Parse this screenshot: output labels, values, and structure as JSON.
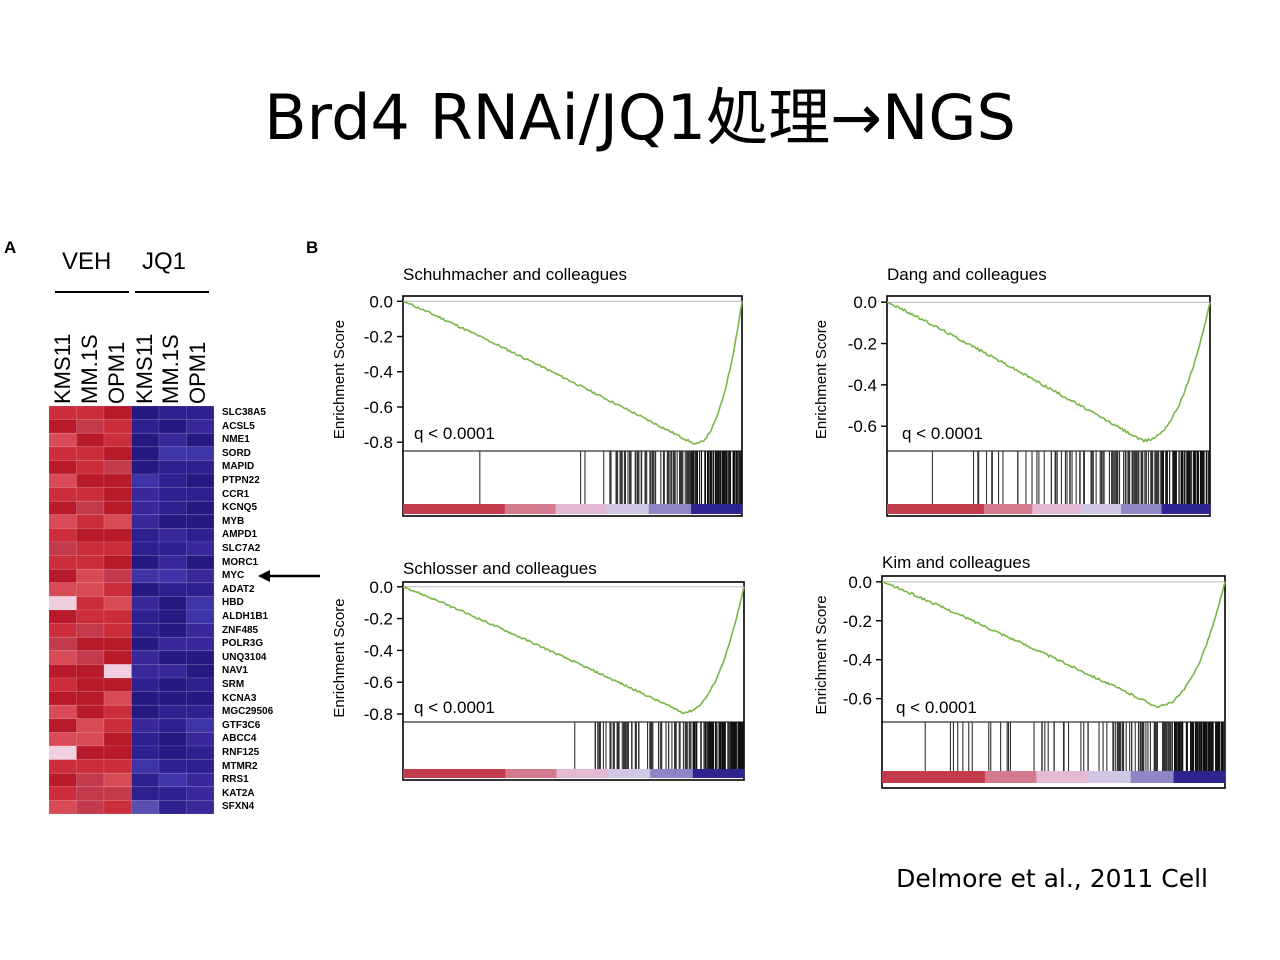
{
  "slide": {
    "title": "Brd4 RNAi/JQ1処理→NGS",
    "citation": "Delmore et al., 2011 Cell"
  },
  "panel_a": {
    "letter": "A",
    "groups": [
      "VEH",
      "JQ1"
    ],
    "columns": [
      "KMS11",
      "MM.1S",
      "OPM1",
      "KMS11",
      "MM.1S",
      "OPM1"
    ],
    "genes": [
      "SLC38A5",
      "ACSL5",
      "NME1",
      "SORD",
      "MAPID",
      "PTPN22",
      "CCR1",
      "KCNQ5",
      "MYB",
      "AMPD1",
      "SLC7A2",
      "MORC1",
      "MYC",
      "ADAT2",
      "HBD",
      "ALDH1B1",
      "ZNF485",
      "POLR3G",
      "UNQ3104",
      "NAV1",
      "SRM",
      "KCNA3",
      "MGC29506",
      "GTF3C6",
      "ABCC4",
      "RNF125",
      "MTMR2",
      "RRS1",
      "KAT2A",
      "SFXN4"
    ],
    "highlight_gene": "MYC",
    "colors": {
      "high": "#c8202e",
      "low": "#2c1d8c",
      "mid": "#f0d0e0"
    }
  },
  "panel_b": {
    "letter": "B",
    "ylabel": "Enrichment Score",
    "line_color": "#7ab648",
    "plots": [
      {
        "title": "Schuhmacher and colleagues",
        "q": "q < 0.0001",
        "ticks": [
          "0.0",
          "-0.2",
          "-0.4",
          "-0.6",
          "-0.8"
        ],
        "ylim": [
          -0.85,
          0.03
        ],
        "min_es": -0.81,
        "min_at": 0.86
      },
      {
        "title": "Dang and colleagues",
        "q": "q < 0.0001",
        "ticks": [
          "0.0",
          "-0.2",
          "-0.4",
          "-0.6"
        ],
        "ylim": [
          -0.72,
          0.03
        ],
        "min_es": -0.67,
        "min_at": 0.79
      },
      {
        "title": "Schlosser and colleagues",
        "q": "q < 0.0001",
        "ticks": [
          "0.0",
          "-0.2",
          "-0.4",
          "-0.6",
          "-0.8"
        ],
        "ylim": [
          -0.85,
          0.03
        ],
        "min_es": -0.79,
        "min_at": 0.82
      },
      {
        "title": "Kim and colleagues",
        "q": "q < 0.0001",
        "ticks": [
          "0.0",
          "-0.2",
          "-0.4",
          "-0.6"
        ],
        "ylim": [
          -0.72,
          0.03
        ],
        "min_es": -0.64,
        "min_at": 0.8
      }
    ]
  }
}
